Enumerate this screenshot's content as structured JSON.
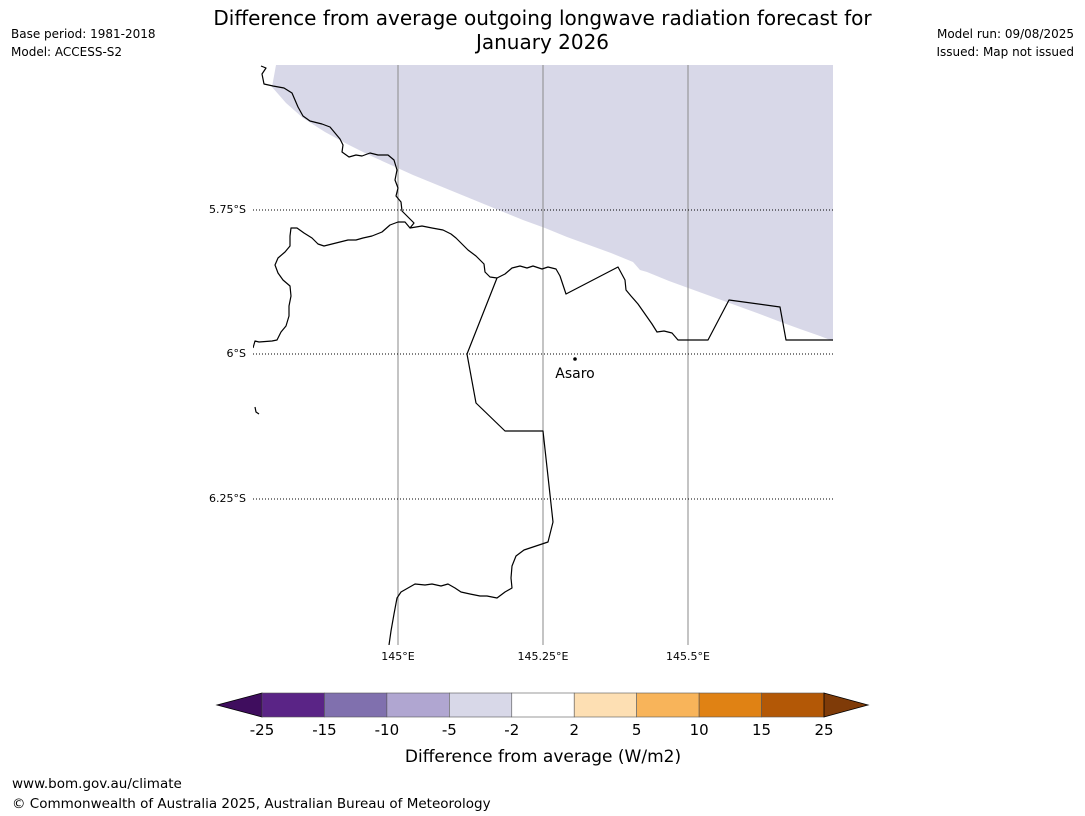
{
  "title": {
    "line1": "Difference from average outgoing longwave radiation forecast for",
    "line2": "January 2026"
  },
  "meta_left": {
    "base_period": "Base period: 1981-2018",
    "model": "Model: ACCESS-S2"
  },
  "meta_right": {
    "model_run": "Model run: 09/08/2025",
    "issued": "Issued: Map not issued"
  },
  "map": {
    "lat_labels": [
      "5.75°S",
      "6°S",
      "6.25°S"
    ],
    "lon_labels": [
      "145°E",
      "145.25°E",
      "145.5°E"
    ],
    "place": "Asaro",
    "shaded_category": "-5 to -2",
    "shaded_color": "#d8d8e8"
  },
  "colorbar": {
    "colors": [
      "#3f0d5e",
      "#5a2486",
      "#8070ae",
      "#b0a6d1",
      "#d8d8e8",
      "#ffffff",
      "#fddfb3",
      "#f8b45a",
      "#e08214",
      "#b35806",
      "#7f3b08"
    ],
    "tick_labels": [
      "-25",
      "-15",
      "-10",
      "-5",
      "-2",
      "2",
      "5",
      "10",
      "15",
      "25"
    ],
    "label": "Difference from average (W/m2)"
  },
  "footer": {
    "url": "www.bom.gov.au/climate",
    "copyright": "© Commonwealth of Australia 2025, Australian Bureau of Meteorology"
  }
}
